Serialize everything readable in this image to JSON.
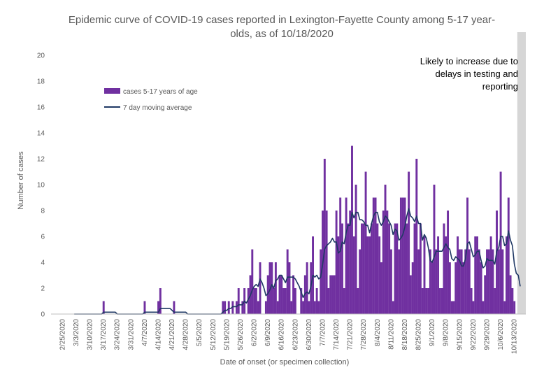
{
  "chart_data": {
    "type": "bar",
    "title_line1": "Epidemic curve of COVID-19 cases reported in Lexington-Fayette County among 5-17 year-",
    "title_line2": "olds, as of 10/18/2020",
    "xlabel": "Date of onset (or specimen collection)",
    "ylabel": "Number of cases",
    "ylim": [
      0,
      20
    ],
    "yticks": [
      0,
      2,
      4,
      6,
      8,
      10,
      12,
      14,
      16,
      18,
      20
    ],
    "x_start": "2020-02-25",
    "x_end": "2020-10-18",
    "x_tick_labels": [
      "2/25/2020",
      "3/3/2020",
      "3/10/2020",
      "3/17/2020",
      "3/24/2020",
      "3/31/2020",
      "4/7/2020",
      "4/14/2020",
      "4/21/2020",
      "4/28/2020",
      "5/5/2020",
      "5/12/2020",
      "5/19/2020",
      "5/26/2020",
      "6/2/2020",
      "6/9/2020",
      "6/16/2020",
      "6/23/2020",
      "6/30/2020",
      "7/7/2020",
      "7/14/2020",
      "7/21/2020",
      "7/28/2020",
      "8/4/2020",
      "8/11/2020",
      "8/18/2020",
      "8/25/2020",
      "9/1/2020",
      "9/8/2020",
      "9/15/2020",
      "9/22/2020",
      "9/29/2020",
      "10/6/2020",
      "10/13/2020"
    ],
    "grid": false,
    "legend_position": "upper-left",
    "annotation": [
      "Likely to increase due to",
      "delays in testing and",
      "reporting"
    ],
    "shaded_from": "2020-10-15",
    "series": [
      {
        "name": "cases 5-17 years of age",
        "kind": "bar",
        "color": "#7030A0",
        "values": [
          0,
          0,
          0,
          0,
          0,
          0,
          0,
          0,
          0,
          0,
          0,
          0,
          0,
          0,
          0,
          0,
          0,
          0,
          0,
          0,
          0,
          1,
          0,
          0,
          0,
          0,
          0,
          0,
          0,
          0,
          0,
          0,
          0,
          0,
          0,
          0,
          0,
          0,
          0,
          0,
          0,
          0,
          1,
          0,
          0,
          0,
          0,
          0,
          0,
          1,
          2,
          0,
          0,
          0,
          0,
          0,
          0,
          1,
          0,
          0,
          0,
          0,
          0,
          0,
          0,
          0,
          0,
          0,
          0,
          0,
          0,
          0,
          0,
          0,
          0,
          0,
          0,
          0,
          0,
          0,
          0,
          0,
          1,
          1,
          0,
          1,
          0,
          1,
          0,
          1,
          2,
          0,
          1,
          2,
          0,
          2,
          3,
          5,
          2,
          2,
          1,
          4,
          0,
          0,
          1,
          3,
          4,
          4,
          2,
          4,
          1,
          3,
          3,
          2,
          2,
          5,
          4,
          1,
          3,
          2,
          0,
          0,
          2,
          1,
          3,
          4,
          1,
          4,
          6,
          1,
          2,
          1,
          5,
          8,
          12,
          8,
          2,
          3,
          3,
          3,
          8,
          6,
          9,
          7,
          2,
          9,
          7,
          8,
          13,
          6,
          10,
          2,
          5,
          7,
          7,
          11,
          6,
          6,
          7,
          9,
          9,
          7,
          6,
          4,
          8,
          10,
          8,
          7,
          5,
          1,
          7,
          7,
          5,
          9,
          9,
          9,
          7,
          11,
          3,
          4,
          7,
          12,
          5,
          7,
          2,
          6,
          2,
          2,
          5,
          4,
          10,
          5,
          6,
          2,
          2,
          7,
          6,
          8,
          4,
          1,
          1,
          4,
          6,
          5,
          5,
          4,
          5,
          9,
          5,
          2,
          1,
          6,
          6,
          5,
          4,
          1,
          3,
          5,
          5,
          6,
          5,
          2,
          8,
          5,
          11,
          5,
          1,
          6,
          9,
          3,
          2,
          1,
          0,
          0,
          0
        ]
      },
      {
        "name": "7 day moving average",
        "kind": "line",
        "color": "#1F3864"
      }
    ]
  }
}
